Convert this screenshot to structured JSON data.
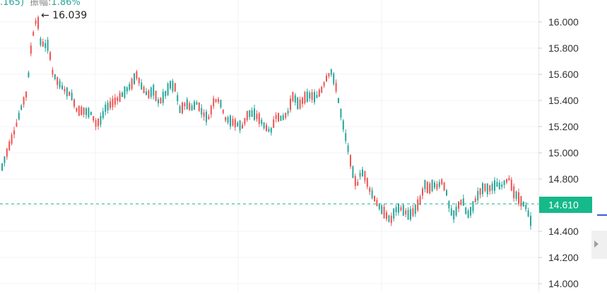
{
  "header": {
    "prefix": ".165)",
    "amplitude_label": "振幅:",
    "amplitude_value": "1.86%"
  },
  "max_marker_label": "← 16.039",
  "current_price_label": "14.610",
  "colors": {
    "up": "#26a69a",
    "down": "#ef5350",
    "price_tag": "#15b98a",
    "grid": "#f0f3fa",
    "axis_text": "#333333"
  },
  "chart_data": {
    "type": "candlestick",
    "title": "",
    "xlabel": "",
    "ylabel": "",
    "ylim": [
      14.0,
      16.1
    ],
    "y_ticks": [
      "16.000",
      "15.800",
      "15.600",
      "15.400",
      "15.200",
      "15.000",
      "14.800",
      "14.600",
      "14.400",
      "14.200",
      "14.000"
    ],
    "grid": true,
    "current_price": 14.61,
    "max_value": 16.039,
    "candles": []
  }
}
